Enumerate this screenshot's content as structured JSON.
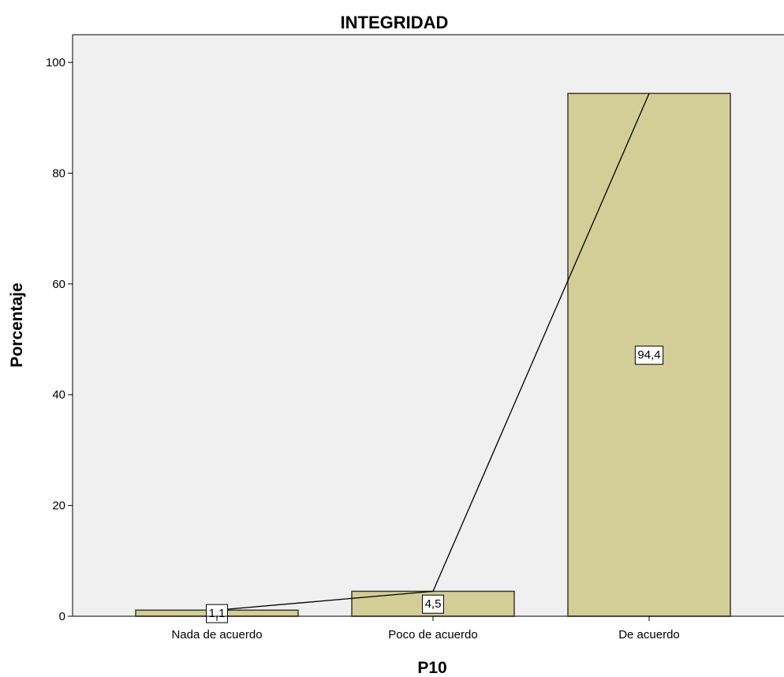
{
  "chart_data": {
    "type": "bar",
    "title": "INTEGRIDAD",
    "xlabel": "P10",
    "ylabel": "Porcentaje",
    "categories": [
      "Nada de acuerdo",
      "Poco de acuerdo",
      "De acuerdo"
    ],
    "values": [
      1.1,
      4.5,
      94.4
    ],
    "data_labels": [
      "1,1",
      "4,5",
      "94,4"
    ],
    "ylim": [
      0,
      105
    ],
    "yticks": [
      0,
      20,
      40,
      60,
      80,
      100
    ],
    "ytick_labels": [
      "0",
      "20",
      "40",
      "60",
      "80",
      "100"
    ],
    "overlay_line": true,
    "grid": false,
    "legend": "none",
    "colors": {
      "plot_background": "#f0f0f0",
      "bar_fill": "#d3ce97",
      "bar_stroke": "#3a3a2a",
      "line": "#000000",
      "label_box": "#ffffff"
    }
  }
}
